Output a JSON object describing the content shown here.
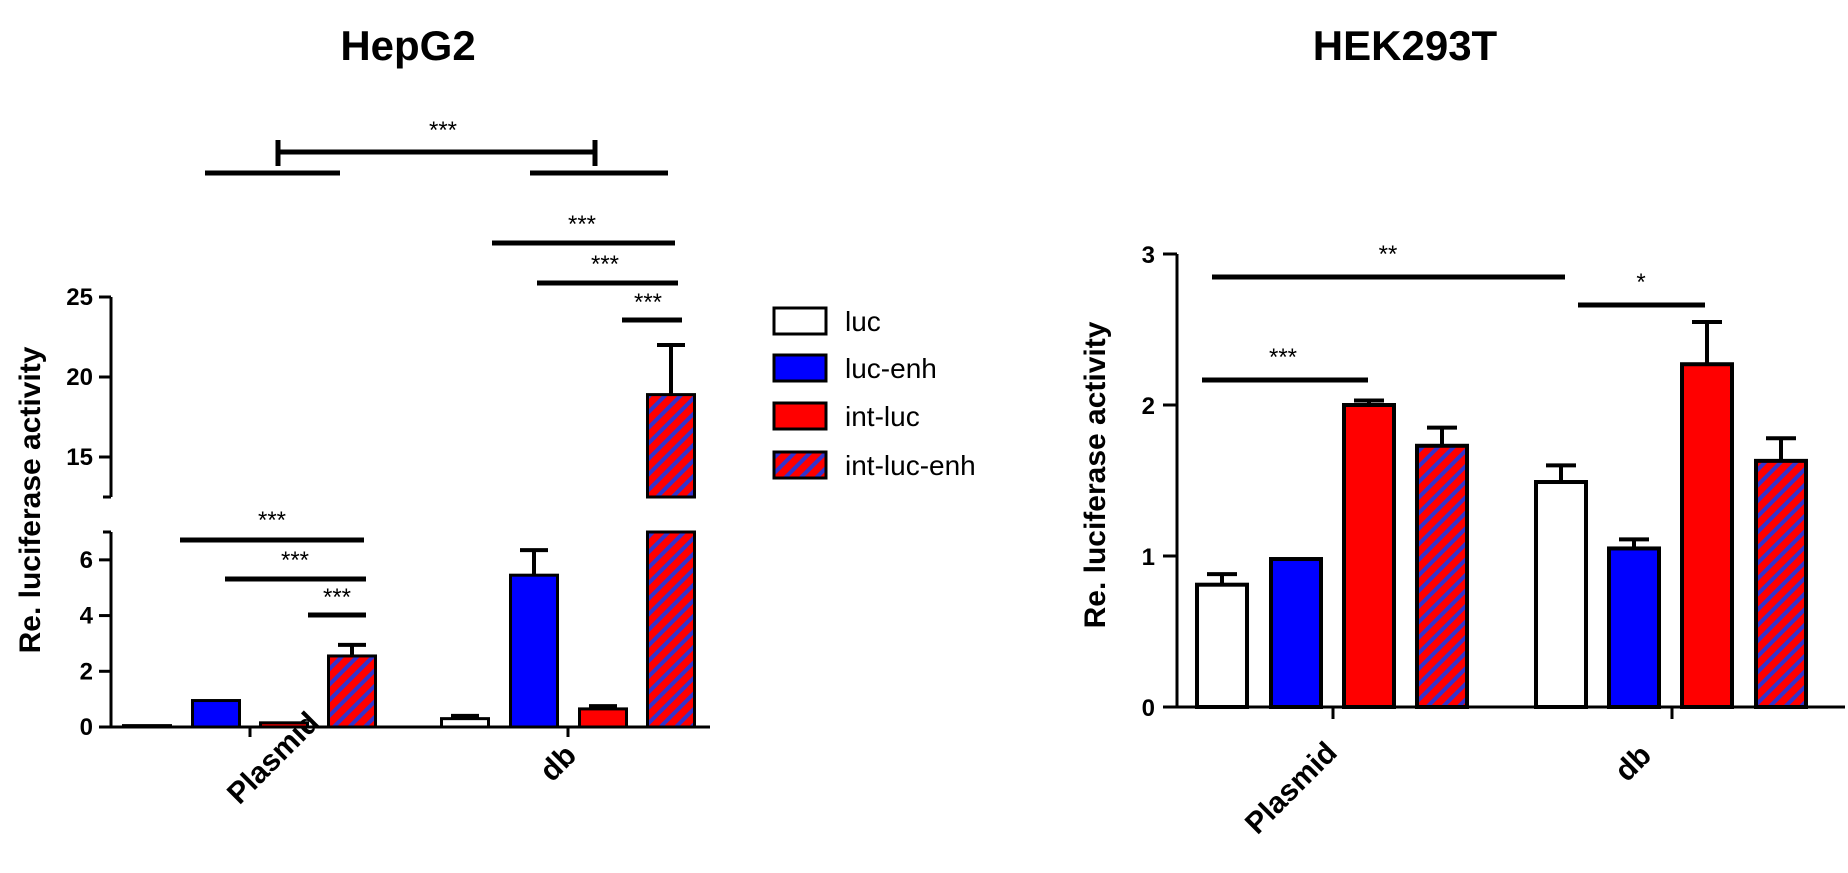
{
  "chart_data": [
    {
      "type": "bar",
      "title": "HepG2",
      "ylabel": "Re. luciferase activity",
      "categories": [
        "Plasmid",
        "db"
      ],
      "y_axis_break": {
        "lower_segment": [
          0,
          7
        ],
        "upper_segment": [
          12.5,
          25
        ]
      },
      "yticks_lower": [
        "0",
        "2",
        "4",
        "6"
      ],
      "yticks_upper": [
        "15",
        "20",
        "25"
      ],
      "series": [
        {
          "name": "luc",
          "values": [
            0.05,
            0.3
          ],
          "errors": [
            0,
            0.1
          ]
        },
        {
          "name": "luc-enh",
          "values": [
            0.95,
            5.45
          ],
          "errors": [
            0,
            0.9
          ]
        },
        {
          "name": "int-luc",
          "values": [
            0.15,
            0.65
          ],
          "errors": [
            0,
            0.1
          ]
        },
        {
          "name": "int-luc-enh",
          "values": [
            2.55,
            18.9
          ],
          "errors": [
            0.4,
            3.1
          ]
        }
      ],
      "significance": [
        "***",
        "***",
        "***",
        "***",
        "***",
        "***",
        "***"
      ]
    },
    {
      "type": "bar",
      "title": "HEK293T",
      "ylabel": "Re. luciferase activity",
      "categories": [
        "Plasmid",
        "db"
      ],
      "ylim": [
        0,
        3
      ],
      "yticks": [
        "0",
        "1",
        "2",
        "3"
      ],
      "series": [
        {
          "name": "luc",
          "values": [
            0.81,
            1.49
          ],
          "errors": [
            0.07,
            0.11
          ]
        },
        {
          "name": "luc-enh",
          "values": [
            0.98,
            1.05
          ],
          "errors": [
            0,
            0.06
          ]
        },
        {
          "name": "int-luc",
          "values": [
            2.0,
            2.27
          ],
          "errors": [
            0.03,
            0.28
          ]
        },
        {
          "name": "int-luc-enh",
          "values": [
            1.73,
            1.63
          ],
          "errors": [
            0.12,
            0.15
          ]
        }
      ],
      "significance": [
        "**",
        "*",
        "***"
      ]
    }
  ],
  "legend": {
    "placement": "between panels",
    "items": [
      {
        "name": "luc",
        "fill": "#ffffff",
        "hatch": false
      },
      {
        "name": "luc-enh",
        "fill": "#0000ff",
        "hatch": false
      },
      {
        "name": "int-luc",
        "fill": "#ff0000",
        "hatch": false
      },
      {
        "name": "int-luc-enh",
        "fill": "#ff0000",
        "hatch": true,
        "hatch_color": "#3333cc"
      }
    ]
  },
  "colors": {
    "luc": "#ffffff",
    "luc-enh": "#0000ff",
    "int-luc": "#ff0000",
    "int-luc-enh": "#ff0000",
    "hatch": "#3333cc",
    "axis": "#000000"
  }
}
